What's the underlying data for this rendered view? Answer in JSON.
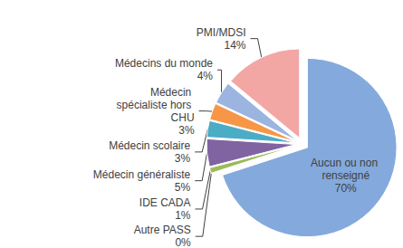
{
  "chart_data": {
    "type": "pie",
    "categories": [
      "Aucun ou non renseigné",
      "Autre PASS",
      "IDE CADA",
      "Médecin généraliste",
      "Médecin scolaire",
      "Médecin spécialiste hors CHU",
      "Médecins du monde",
      "PMI/MDSI"
    ],
    "values": [
      70,
      0,
      1,
      5,
      3,
      3,
      4,
      14
    ],
    "value_labels": [
      "70%",
      "0%",
      "1%",
      "5%",
      "3%",
      "3%",
      "4%",
      "14%"
    ],
    "colors": [
      "#84a9dc",
      "#c0504d",
      "#9bbb59",
      "#8064a2",
      "#4bacc6",
      "#f79646",
      "#9bb5e0",
      "#f2a7a5"
    ],
    "data_labels": true
  }
}
